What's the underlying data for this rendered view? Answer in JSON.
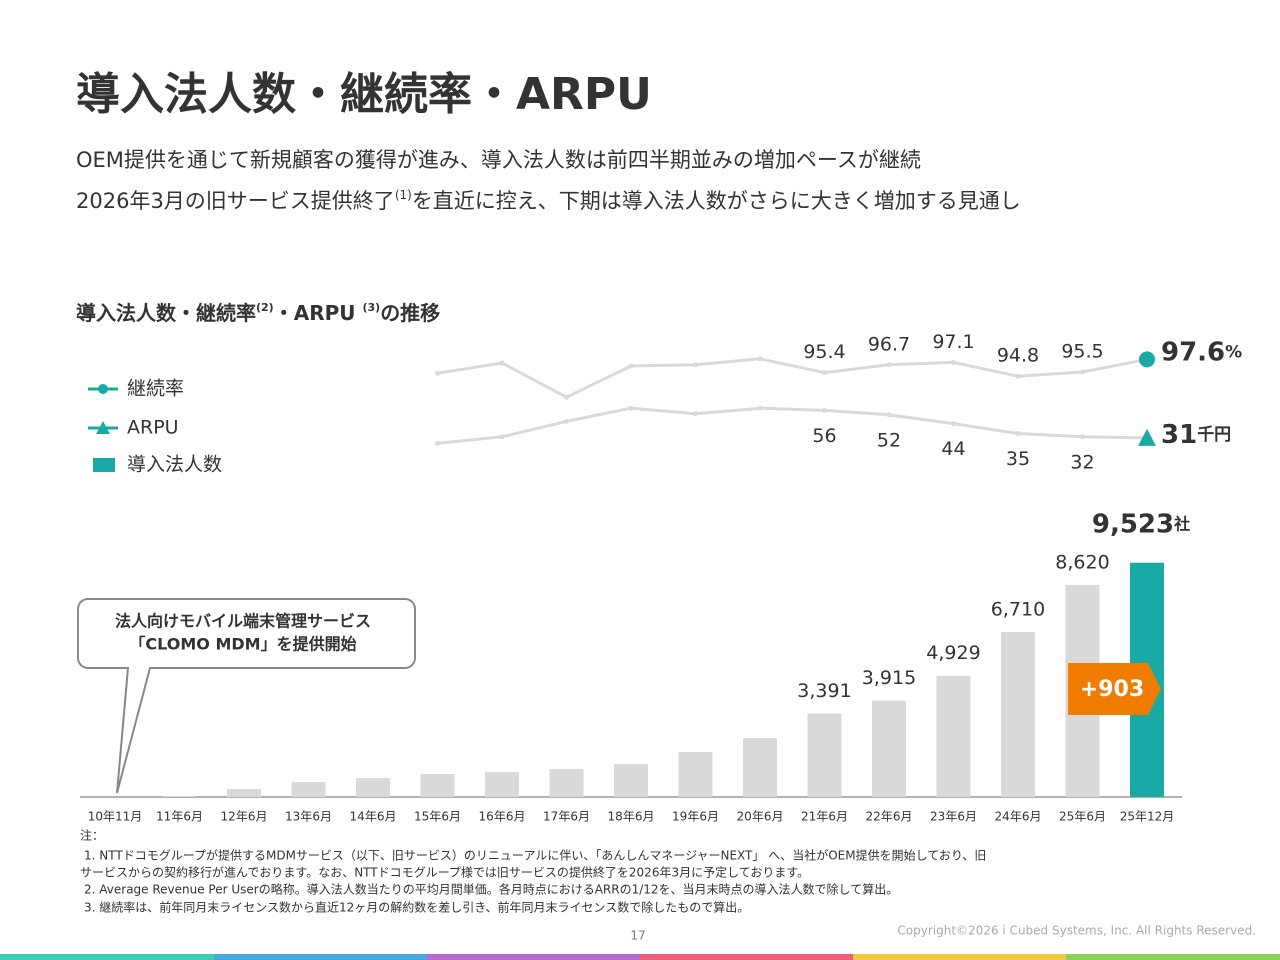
{
  "header": {
    "title": "導入法人数・継続率・ARPU",
    "subtitle_1": "OEM提供を通じて新規顧客の獲得が進み、導入法人数は前四半期並みの増加ペースが継続",
    "subtitle_2_a": "2026年3月の旧サービス提供終了",
    "subtitle_2_sup": "(1)",
    "subtitle_2_b": "を直近に控え、下期は導入法人数がさらに大きく増加する見通し"
  },
  "chart_data": {
    "type": "bar",
    "title_a": "導入法人数・継続率",
    "title_sup_a": "(2)",
    "title_b": "・ARPU ",
    "title_sup_b": "(3)",
    "title_c": "の推移",
    "categories": [
      "10年11月",
      "11年6月",
      "12年6月",
      "13年6月",
      "14年6月",
      "15年6月",
      "16年6月",
      "17年6月",
      "18年6月",
      "19年6月",
      "20年6月",
      "21年6月",
      "22年6月",
      "23年6月",
      "24年6月",
      "25年6月",
      "25年12月"
    ],
    "ylim": [
      0,
      10000
    ],
    "series": [
      {
        "name": "導入法人数",
        "type": "bar",
        "color": "#d9d9d9",
        "highlight_color": "#1aaaa5",
        "values": [
          0,
          30,
          325,
          610,
          770,
          936,
          1020,
          1140,
          1340,
          1830,
          2400,
          3391,
          3915,
          4929,
          6710,
          8620,
          9523
        ],
        "value_labels": [
          null,
          null,
          null,
          null,
          null,
          null,
          null,
          null,
          null,
          null,
          null,
          "3,391",
          "3,915",
          "4,929",
          "6,710",
          "8,620",
          "9,523"
        ],
        "unit": "社"
      },
      {
        "name": "継続率",
        "type": "line",
        "color": "#d9d9d9",
        "marker_color": "#1aaaa5",
        "marker": "circle",
        "ylim": [
          85,
          100
        ],
        "values": [
          null,
          null,
          null,
          null,
          null,
          95.3,
          97.0,
          91.3,
          96.5,
          96.7,
          97.7,
          95.4,
          96.7,
          97.1,
          94.8,
          95.5,
          97.6
        ],
        "value_labels": [
          null,
          null,
          null,
          null,
          null,
          null,
          null,
          null,
          null,
          null,
          null,
          "95.4",
          "96.7",
          "97.1",
          "94.8",
          "95.5",
          "97.6"
        ],
        "unit": "%"
      },
      {
        "name": "ARPU",
        "type": "line",
        "color": "#d9d9d9",
        "marker_color": "#1aaaa5",
        "marker": "triangle",
        "ylim": [
          0,
          100
        ],
        "values": [
          null,
          null,
          null,
          null,
          null,
          26,
          32,
          46,
          58,
          53,
          58,
          56,
          52,
          44,
          35,
          32,
          31
        ],
        "value_labels": [
          null,
          null,
          null,
          null,
          null,
          null,
          null,
          null,
          null,
          null,
          null,
          "56",
          "52",
          "44",
          "35",
          "32",
          "31"
        ],
        "unit": "千円"
      }
    ],
    "annotations": {
      "callout_1": "法人向けモバイル端末管理サービス",
      "callout_2": "「CLOMO MDM」を提供開始",
      "increase": "+903"
    }
  },
  "footnotes": {
    "label": "注：",
    "note_1a": "1. NTTドコモグループが提供するMDMサービス（以下、旧サービス）のリニューアルに伴い、「あんしんマネージャーNEXT」 へ、当社がOEM提供を開始しており、旧",
    "note_1b": "サービスからの契約移行が進んでおります。なお、NTTドコモグループ様では旧サービスの提供終了を2026年3月に予定しております。",
    "note_2": "2. Average Revenue Per Userの略称。導入法人数当たりの平均月間単価。各月時点におけるARRの1/12を、当月末時点の導入法人数で除して算出。",
    "note_3": "3. 継続率は、前年同月末ライセンス数から直近12ヶ月の解約数を差し引き、前年同月末ライセンス数で除したもので算出。"
  },
  "footer": {
    "page": "17",
    "copyright": "Copyright©2026 i Cubed Systems, Inc. All Rights Reserved."
  }
}
